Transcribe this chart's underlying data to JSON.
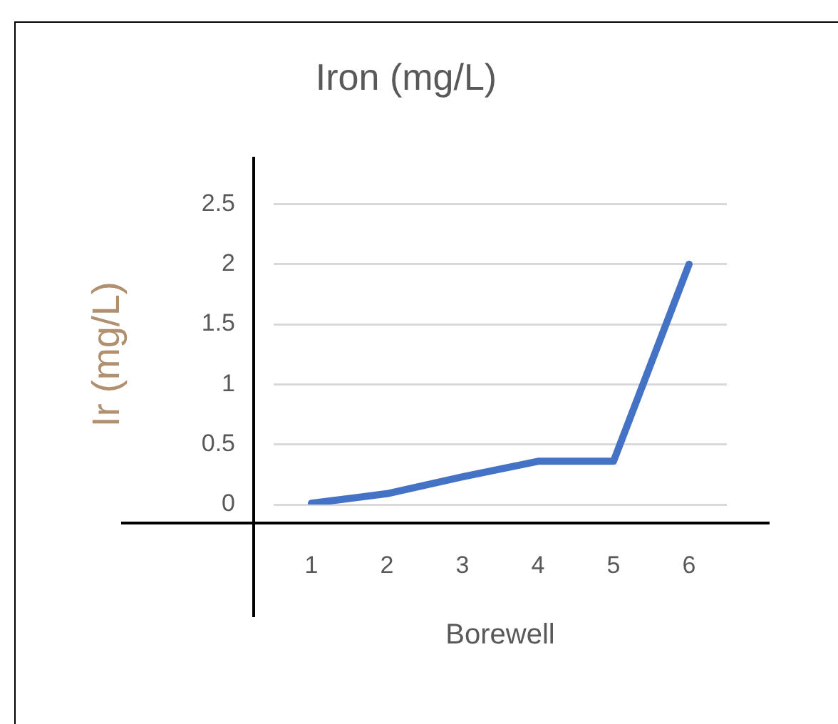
{
  "chart_data": {
    "type": "line",
    "title": "Iron (mg/L)",
    "xlabel": "Borewell",
    "ylabel": "Ir (mg/L)",
    "categories": [
      "1",
      "2",
      "3",
      "4",
      "5",
      "6"
    ],
    "series": [
      {
        "color": "#4472c4",
        "values": [
          0.01,
          0.09,
          0.23,
          0.36,
          0.36,
          2.0
        ]
      }
    ],
    "ylim": [
      0,
      2.5
    ],
    "yticks": [
      0,
      0.5,
      1,
      1.5,
      2,
      2.5
    ],
    "grid": "y",
    "legend": false,
    "marker": "none",
    "line_style": "solid"
  }
}
